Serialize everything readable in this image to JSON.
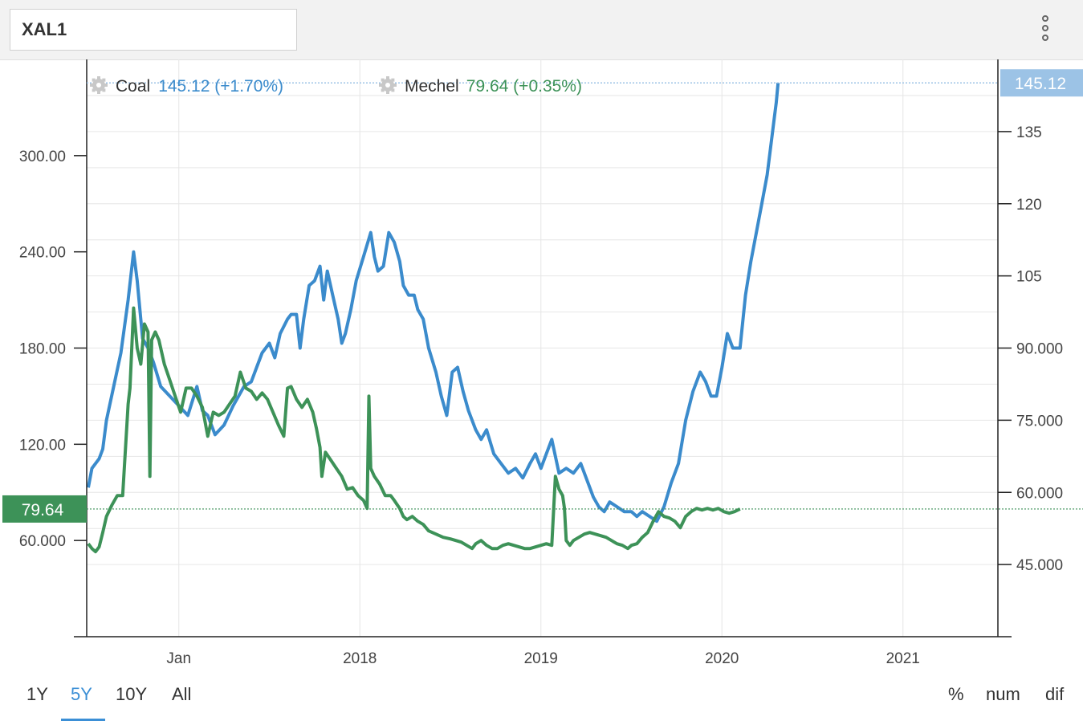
{
  "symbol": "XAL1",
  "menu_icon": "vertical-dots-icon",
  "legend": [
    {
      "icon": "gear-icon",
      "name": "Coal",
      "value": "145.12",
      "change": "(+1.70%)",
      "color": "#3b8bcc"
    },
    {
      "icon": "gear-icon",
      "name": "Mechel",
      "value": "79.64",
      "change": "(+0.35%)",
      "color": "#3d9258"
    }
  ],
  "ranges": [
    {
      "label": "1Y",
      "active": false
    },
    {
      "label": "5Y",
      "active": true
    },
    {
      "label": "10Y",
      "active": false
    },
    {
      "label": "All",
      "active": false
    }
  ],
  "modes": [
    "%",
    "num",
    "dif"
  ],
  "chart_data": {
    "type": "line",
    "x_ticks": [
      "Jan",
      "2018",
      "2019",
      "2020",
      "2021"
    ],
    "left_axis": {
      "ticks": [
        "60.000",
        "120.00",
        "180.00",
        "240.00",
        "300.00"
      ],
      "ylim": [
        0,
        360
      ],
      "series": "Mechel"
    },
    "right_axis": {
      "ticks": [
        "45.000",
        "60.000",
        "75.000",
        "90.000",
        "105",
        "120",
        "135"
      ],
      "ylim": [
        30,
        150
      ],
      "series": "Coal"
    },
    "last_value_labels": {
      "Coal": "145.12",
      "Mechel": "79.64"
    },
    "grid": true,
    "series": [
      {
        "name": "Coal",
        "axis": "right",
        "color": "#3b8bcc",
        "points": [
          [
            0.0,
            61
          ],
          [
            0.02,
            65
          ],
          [
            0.04,
            66
          ],
          [
            0.06,
            67
          ],
          [
            0.08,
            69
          ],
          [
            0.1,
            75
          ],
          [
            0.14,
            82
          ],
          [
            0.18,
            89
          ],
          [
            0.22,
            100
          ],
          [
            0.25,
            110
          ],
          [
            0.27,
            104
          ],
          [
            0.3,
            92
          ],
          [
            0.33,
            90
          ],
          [
            0.36,
            87
          ],
          [
            0.4,
            82
          ],
          [
            0.45,
            80
          ],
          [
            0.5,
            78
          ],
          [
            0.55,
            76
          ],
          [
            0.6,
            82
          ],
          [
            0.63,
            77
          ],
          [
            0.66,
            76
          ],
          [
            0.7,
            72
          ],
          [
            0.75,
            74
          ],
          [
            0.8,
            78
          ],
          [
            0.83,
            80
          ],
          [
            0.86,
            82
          ],
          [
            0.9,
            83
          ],
          [
            0.93,
            86
          ],
          [
            0.96,
            89
          ],
          [
            1.0,
            91
          ],
          [
            1.03,
            88
          ],
          [
            1.06,
            93
          ],
          [
            1.1,
            96
          ],
          [
            1.12,
            97
          ],
          [
            1.15,
            97
          ],
          [
            1.17,
            90
          ],
          [
            1.19,
            96
          ],
          [
            1.22,
            103
          ],
          [
            1.25,
            104
          ],
          [
            1.28,
            107
          ],
          [
            1.3,
            100
          ],
          [
            1.32,
            106
          ],
          [
            1.35,
            101
          ],
          [
            1.38,
            96
          ],
          [
            1.4,
            91
          ],
          [
            1.42,
            93
          ],
          [
            1.45,
            98
          ],
          [
            1.48,
            104
          ],
          [
            1.52,
            109
          ],
          [
            1.56,
            114
          ],
          [
            1.58,
            109
          ],
          [
            1.6,
            106
          ],
          [
            1.63,
            107
          ],
          [
            1.66,
            114
          ],
          [
            1.69,
            112
          ],
          [
            1.72,
            108
          ],
          [
            1.74,
            103
          ],
          [
            1.77,
            101
          ],
          [
            1.8,
            101
          ],
          [
            1.82,
            98
          ],
          [
            1.85,
            96
          ],
          [
            1.88,
            90
          ],
          [
            1.92,
            85
          ],
          [
            1.95,
            80
          ],
          [
            1.98,
            76
          ],
          [
            2.01,
            85
          ],
          [
            2.04,
            86
          ],
          [
            2.07,
            81
          ],
          [
            2.1,
            77
          ],
          [
            2.14,
            73
          ],
          [
            2.17,
            71
          ],
          [
            2.2,
            73
          ],
          [
            2.24,
            68
          ],
          [
            2.28,
            66
          ],
          [
            2.32,
            64
          ],
          [
            2.36,
            65
          ],
          [
            2.4,
            63
          ],
          [
            2.44,
            66
          ],
          [
            2.47,
            68
          ],
          [
            2.5,
            65
          ],
          [
            2.53,
            68
          ],
          [
            2.56,
            71
          ],
          [
            2.6,
            64
          ],
          [
            2.64,
            65
          ],
          [
            2.68,
            64
          ],
          [
            2.72,
            66
          ],
          [
            2.76,
            62
          ],
          [
            2.79,
            59
          ],
          [
            2.82,
            57
          ],
          [
            2.85,
            56
          ],
          [
            2.88,
            58
          ],
          [
            2.92,
            57
          ],
          [
            2.96,
            56
          ],
          [
            3.0,
            56
          ],
          [
            3.03,
            55
          ],
          [
            3.06,
            56
          ],
          [
            3.1,
            55
          ],
          [
            3.14,
            54
          ],
          [
            3.18,
            57
          ],
          [
            3.22,
            62
          ],
          [
            3.26,
            66
          ],
          [
            3.3,
            75
          ],
          [
            3.34,
            81
          ],
          [
            3.38,
            85
          ],
          [
            3.41,
            83
          ],
          [
            3.44,
            80
          ],
          [
            3.47,
            80
          ],
          [
            3.5,
            86
          ],
          [
            3.53,
            93
          ],
          [
            3.56,
            90
          ],
          [
            3.6,
            90
          ],
          [
            3.63,
            101
          ],
          [
            3.66,
            108
          ],
          [
            3.69,
            114
          ],
          [
            3.72,
            120
          ],
          [
            3.75,
            126
          ],
          [
            3.77,
            132
          ],
          [
            3.79,
            138
          ],
          [
            3.8,
            141
          ],
          [
            3.81,
            145.12
          ]
        ]
      },
      {
        "name": "Mechel",
        "axis": "left",
        "color": "#3d9258",
        "points": [
          [
            0.0,
            58
          ],
          [
            0.02,
            55
          ],
          [
            0.04,
            53
          ],
          [
            0.06,
            56
          ],
          [
            0.08,
            65
          ],
          [
            0.1,
            75
          ],
          [
            0.13,
            82
          ],
          [
            0.16,
            88
          ],
          [
            0.19,
            88
          ],
          [
            0.22,
            145
          ],
          [
            0.23,
            155
          ],
          [
            0.25,
            205
          ],
          [
            0.27,
            180
          ],
          [
            0.29,
            170
          ],
          [
            0.31,
            195
          ],
          [
            0.33,
            190
          ],
          [
            0.34,
            100
          ],
          [
            0.35,
            185
          ],
          [
            0.37,
            190
          ],
          [
            0.39,
            185
          ],
          [
            0.42,
            170
          ],
          [
            0.45,
            160
          ],
          [
            0.48,
            150
          ],
          [
            0.51,
            140
          ],
          [
            0.54,
            155
          ],
          [
            0.57,
            155
          ],
          [
            0.6,
            150
          ],
          [
            0.63,
            143
          ],
          [
            0.66,
            125
          ],
          [
            0.69,
            140
          ],
          [
            0.72,
            138
          ],
          [
            0.75,
            140
          ],
          [
            0.78,
            145
          ],
          [
            0.81,
            150
          ],
          [
            0.84,
            165
          ],
          [
            0.87,
            155
          ],
          [
            0.9,
            153
          ],
          [
            0.93,
            148
          ],
          [
            0.96,
            152
          ],
          [
            0.99,
            148
          ],
          [
            1.02,
            140
          ],
          [
            1.05,
            132
          ],
          [
            1.08,
            125
          ],
          [
            1.1,
            155
          ],
          [
            1.12,
            156
          ],
          [
            1.15,
            148
          ],
          [
            1.18,
            143
          ],
          [
            1.21,
            148
          ],
          [
            1.24,
            140
          ],
          [
            1.26,
            130
          ],
          [
            1.28,
            118
          ],
          [
            1.29,
            100
          ],
          [
            1.31,
            115
          ],
          [
            1.34,
            110
          ],
          [
            1.37,
            105
          ],
          [
            1.4,
            100
          ],
          [
            1.43,
            92
          ],
          [
            1.46,
            93
          ],
          [
            1.49,
            88
          ],
          [
            1.52,
            85
          ],
          [
            1.54,
            80
          ],
          [
            1.55,
            150
          ],
          [
            1.56,
            105
          ],
          [
            1.58,
            100
          ],
          [
            1.61,
            95
          ],
          [
            1.64,
            88
          ],
          [
            1.67,
            88
          ],
          [
            1.69,
            85
          ],
          [
            1.72,
            80
          ],
          [
            1.74,
            75
          ],
          [
            1.76,
            73
          ],
          [
            1.79,
            75
          ],
          [
            1.82,
            72
          ],
          [
            1.85,
            70
          ],
          [
            1.88,
            66
          ],
          [
            1.92,
            64
          ],
          [
            1.96,
            62
          ],
          [
            2.0,
            61
          ],
          [
            2.03,
            60
          ],
          [
            2.06,
            59
          ],
          [
            2.09,
            57
          ],
          [
            2.12,
            55
          ],
          [
            2.14,
            58
          ],
          [
            2.17,
            60
          ],
          [
            2.2,
            57
          ],
          [
            2.23,
            55
          ],
          [
            2.26,
            55
          ],
          [
            2.29,
            57
          ],
          [
            2.32,
            58
          ],
          [
            2.35,
            57
          ],
          [
            2.38,
            56
          ],
          [
            2.41,
            55
          ],
          [
            2.44,
            55
          ],
          [
            2.47,
            56
          ],
          [
            2.5,
            57
          ],
          [
            2.53,
            58
          ],
          [
            2.56,
            57
          ],
          [
            2.58,
            100
          ],
          [
            2.6,
            92
          ],
          [
            2.62,
            88
          ],
          [
            2.63,
            80
          ],
          [
            2.64,
            60
          ],
          [
            2.66,
            57
          ],
          [
            2.68,
            60
          ],
          [
            2.71,
            62
          ],
          [
            2.74,
            64
          ],
          [
            2.77,
            65
          ],
          [
            2.8,
            64
          ],
          [
            2.83,
            63
          ],
          [
            2.86,
            62
          ],
          [
            2.89,
            60
          ],
          [
            2.92,
            58
          ],
          [
            2.95,
            57
          ],
          [
            2.98,
            55
          ],
          [
            3.0,
            57
          ],
          [
            3.03,
            58
          ],
          [
            3.06,
            62
          ],
          [
            3.09,
            65
          ],
          [
            3.12,
            72
          ],
          [
            3.15,
            78
          ],
          [
            3.18,
            75
          ],
          [
            3.21,
            74
          ],
          [
            3.24,
            72
          ],
          [
            3.27,
            68
          ],
          [
            3.3,
            75
          ],
          [
            3.33,
            78
          ],
          [
            3.36,
            80
          ],
          [
            3.39,
            79
          ],
          [
            3.42,
            80
          ],
          [
            3.45,
            79
          ],
          [
            3.48,
            80
          ],
          [
            3.51,
            78
          ],
          [
            3.54,
            77
          ],
          [
            3.57,
            78
          ],
          [
            3.6,
            79.64
          ]
        ]
      }
    ]
  }
}
